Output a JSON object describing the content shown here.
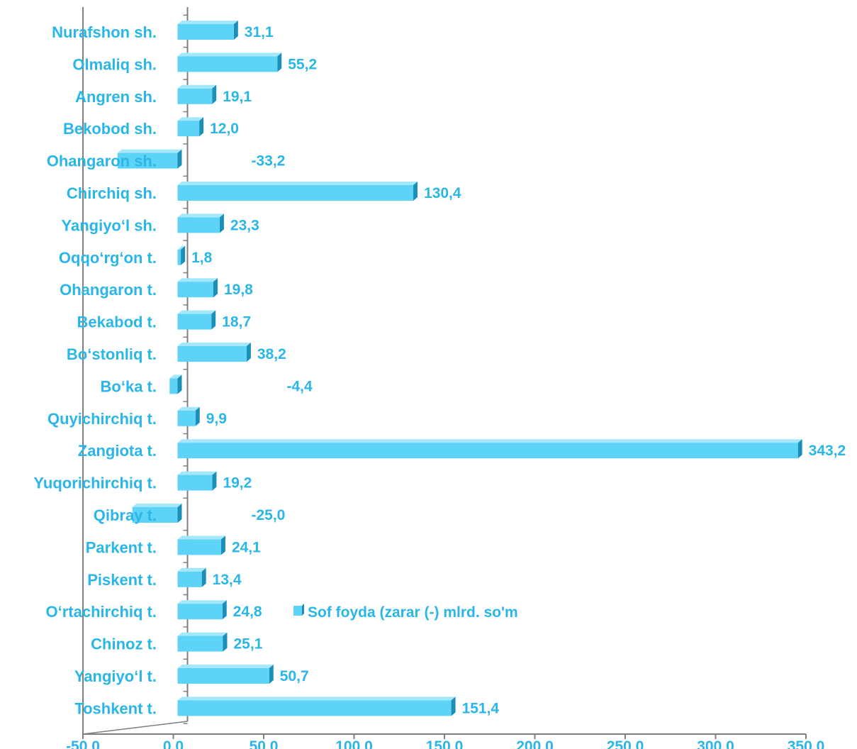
{
  "chart_data": {
    "type": "bar",
    "orientation": "horizontal",
    "categories": [
      "Nurafshon sh.",
      "Olmaliq sh.",
      "Angren sh.",
      "Bekobod sh.",
      "Ohangaron sh.",
      "Chirchiq sh.",
      "Yangiyo‘l sh.",
      "Oqqo‘rg‘on t.",
      "Ohangaron t.",
      "Bekabod t.",
      "Bo‘stonliq t.",
      "Bo‘ka t.",
      "Quyichirchiq t.",
      "Zangiota t.",
      "Yuqorichirchiq t.",
      "Qibray t.",
      "Parkent t.",
      "Piskent t.",
      "O‘rtachirchiq t.",
      "Chinoz t.",
      "Yangiyo‘l t.",
      "Toshkent t."
    ],
    "series": [
      {
        "name": "Sof foyda (zarar (-) mlrd. so'm",
        "values": [
          31.1,
          55.2,
          19.1,
          12.0,
          -33.2,
          130.4,
          23.3,
          1.8,
          19.8,
          18.7,
          38.2,
          -4.4,
          9.9,
          343.2,
          19.2,
          -25.0,
          24.1,
          13.4,
          24.8,
          25.1,
          50.7,
          151.4
        ],
        "labels": [
          "31,1",
          "55,2",
          "19,1",
          "12,0",
          "-33,2",
          "130,4",
          "23,3",
          "1,8",
          "19,8",
          "18,7",
          "38,2",
          "-4,4",
          "9,9",
          "343,2",
          "19,2",
          "-25,0",
          "24,1",
          "13,4",
          "24,8",
          "25,1",
          "50,7",
          "151,4"
        ]
      }
    ],
    "xlim": [
      -50,
      350
    ],
    "xticks": [
      -50,
      0,
      50,
      100,
      150,
      200,
      250,
      300,
      350
    ],
    "xtick_labels": [
      "-50,0",
      "0,0",
      "50,0",
      "100,0",
      "150,0",
      "200,0",
      "250,0",
      "300,0",
      "350,0"
    ],
    "grid": false,
    "legend": "right-middle",
    "colors": {
      "bar": "#5dd3f7",
      "bar_side": "#1b8fb8",
      "bar_top": "#a6e8fb",
      "text": "#29b6e8",
      "axis": "#7f7f7f"
    }
  }
}
